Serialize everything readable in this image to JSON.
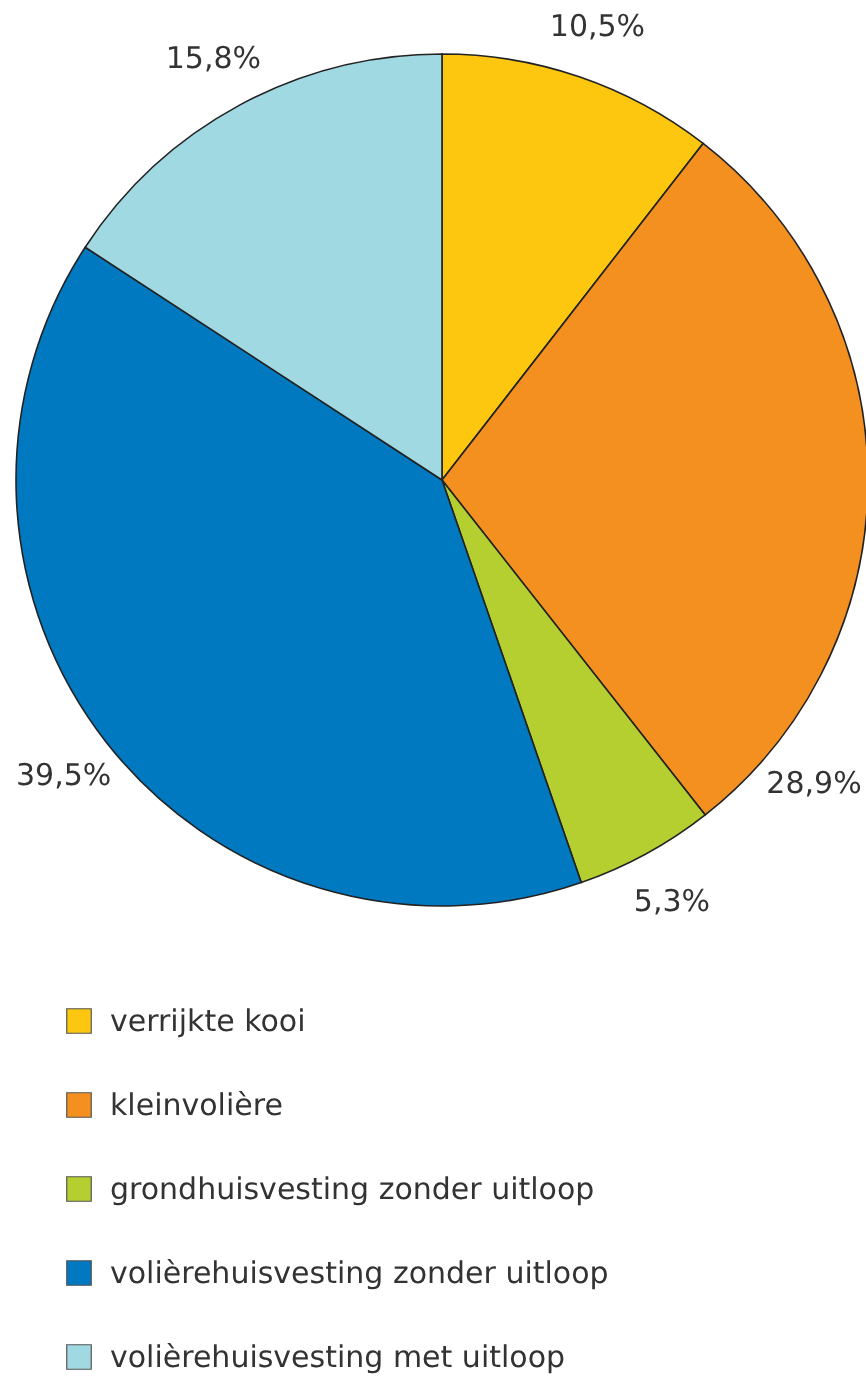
{
  "chart_data": {
    "type": "pie",
    "categories": [
      "verrijkte kooi",
      "kleinvolière",
      "grondhuisvesting zonder uitloop",
      "volièrehuisvesting zonder uitloop",
      "volièrehuisvesting met uitloop"
    ],
    "values": [
      10.5,
      28.9,
      5.3,
      39.5,
      15.8
    ],
    "colors": [
      "#fdc70f",
      "#f39020",
      "#b5cf30",
      "#0079c1",
      "#a1d9e3"
    ],
    "value_labels": [
      "10,5%",
      "28,9%",
      "5,3%",
      "39,5%",
      "15,8%"
    ],
    "legend": "bottom"
  }
}
